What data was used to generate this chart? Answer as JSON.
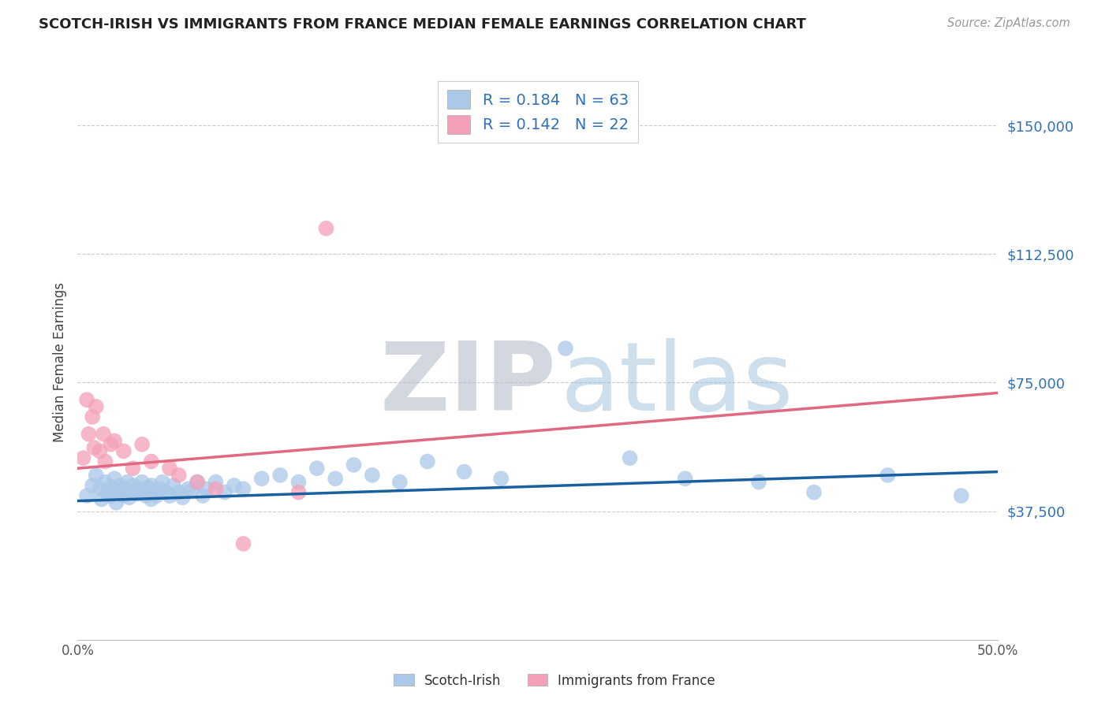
{
  "title": "SCOTCH-IRISH VS IMMIGRANTS FROM FRANCE MEDIAN FEMALE EARNINGS CORRELATION CHART",
  "source_text": "Source: ZipAtlas.com",
  "ylabel": "Median Female Earnings",
  "xlim": [
    0.0,
    0.5
  ],
  "ylim": [
    0,
    162000
  ],
  "yticks": [
    0,
    37500,
    75000,
    112500,
    150000
  ],
  "ytick_labels": [
    "",
    "$37,500",
    "$75,000",
    "$112,500",
    "$150,000"
  ],
  "xticks": [
    0.0,
    0.05,
    0.1,
    0.15,
    0.2,
    0.25,
    0.3,
    0.35,
    0.4,
    0.45,
    0.5
  ],
  "xtick_labels": [
    "0.0%",
    "",
    "",
    "",
    "",
    "",
    "",
    "",
    "",
    "",
    "50.0%"
  ],
  "series1_name": "Scotch-Irish",
  "series1_R": "0.184",
  "series1_N": "63",
  "series1_color": "#aac8e8",
  "series1_line_color": "#1a5fa0",
  "series2_name": "Immigrants from France",
  "series2_R": "0.142",
  "series2_N": "22",
  "series2_color": "#f4a0b8",
  "series2_line_color": "#e06880",
  "grid_color": "#cccccc",
  "background_color": "#ffffff",
  "title_color": "#222222",
  "axis_label_color": "#444444",
  "ytick_color": "#3070b8",
  "trend1_x": [
    0.0,
    0.5
  ],
  "trend1_y": [
    40500,
    49000
  ],
  "trend2_x": [
    0.0,
    0.5
  ],
  "trend2_y": [
    50000,
    72000
  ],
  "scatter1_x": [
    0.005,
    0.008,
    0.01,
    0.012,
    0.013,
    0.015,
    0.016,
    0.018,
    0.018,
    0.02,
    0.021,
    0.022,
    0.023,
    0.025,
    0.025,
    0.027,
    0.028,
    0.03,
    0.03,
    0.032,
    0.033,
    0.035,
    0.035,
    0.037,
    0.038,
    0.04,
    0.04,
    0.042,
    0.043,
    0.045,
    0.046,
    0.048,
    0.05,
    0.052,
    0.055,
    0.057,
    0.06,
    0.062,
    0.065,
    0.068,
    0.07,
    0.075,
    0.08,
    0.085,
    0.09,
    0.1,
    0.11,
    0.12,
    0.13,
    0.14,
    0.15,
    0.16,
    0.175,
    0.19,
    0.21,
    0.23,
    0.265,
    0.3,
    0.33,
    0.37,
    0.4,
    0.44,
    0.48
  ],
  "scatter1_y": [
    42000,
    45000,
    48000,
    44000,
    41000,
    46000,
    43000,
    44500,
    42000,
    47000,
    40000,
    43500,
    45000,
    42000,
    44000,
    46000,
    41500,
    43000,
    45000,
    42500,
    44000,
    43000,
    46000,
    42000,
    44500,
    41000,
    45000,
    43500,
    42000,
    44000,
    46000,
    43000,
    42000,
    45000,
    43000,
    41500,
    44000,
    43500,
    46000,
    42000,
    44000,
    46000,
    43000,
    45000,
    44000,
    47000,
    48000,
    46000,
    50000,
    47000,
    51000,
    48000,
    46000,
    52000,
    49000,
    47000,
    85000,
    53000,
    47000,
    46000,
    43000,
    48000,
    42000
  ],
  "scatter2_x": [
    0.003,
    0.005,
    0.006,
    0.008,
    0.009,
    0.01,
    0.012,
    0.014,
    0.015,
    0.018,
    0.02,
    0.025,
    0.03,
    0.035,
    0.04,
    0.05,
    0.055,
    0.065,
    0.075,
    0.09,
    0.12,
    0.135
  ],
  "scatter2_y": [
    53000,
    70000,
    60000,
    65000,
    56000,
    68000,
    55000,
    60000,
    52000,
    57000,
    58000,
    55000,
    50000,
    57000,
    52000,
    50000,
    48000,
    46000,
    44000,
    28000,
    43000,
    120000
  ]
}
